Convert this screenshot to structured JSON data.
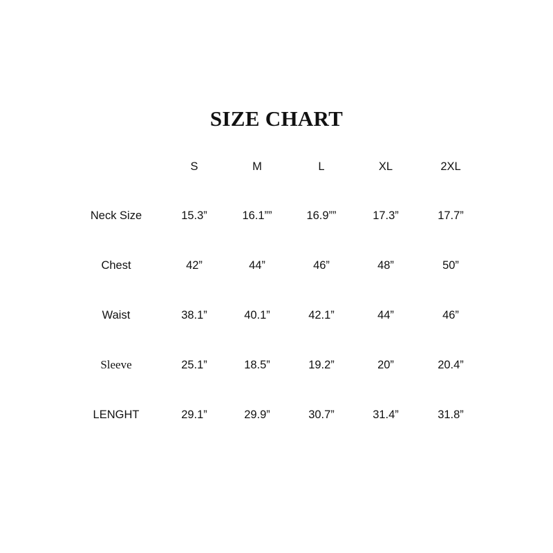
{
  "title": "SIZE CHART",
  "table": {
    "columns": [
      "S",
      "M",
      "L",
      "XL",
      "2XL"
    ],
    "rows": [
      {
        "label": "Neck Size",
        "values": [
          "15.3”",
          "16.1””",
          "16.9””",
          "17.3”",
          "17.7”"
        ]
      },
      {
        "label": "Chest",
        "values": [
          "42”",
          "44”",
          "46”",
          "48”",
          "50”"
        ]
      },
      {
        "label": "Waist",
        "values": [
          "38.1”",
          "40.1”",
          "42.1”",
          "44”",
          "46”"
        ]
      },
      {
        "label": "Sleeve",
        "values": [
          "25.1”",
          "18.5”",
          "19.2”",
          "20”",
          "20.4”"
        ]
      },
      {
        "label": "LENGHT",
        "values": [
          "29.1”",
          "29.9”",
          "30.7”",
          "31.4”",
          "31.8”"
        ]
      }
    ]
  }
}
